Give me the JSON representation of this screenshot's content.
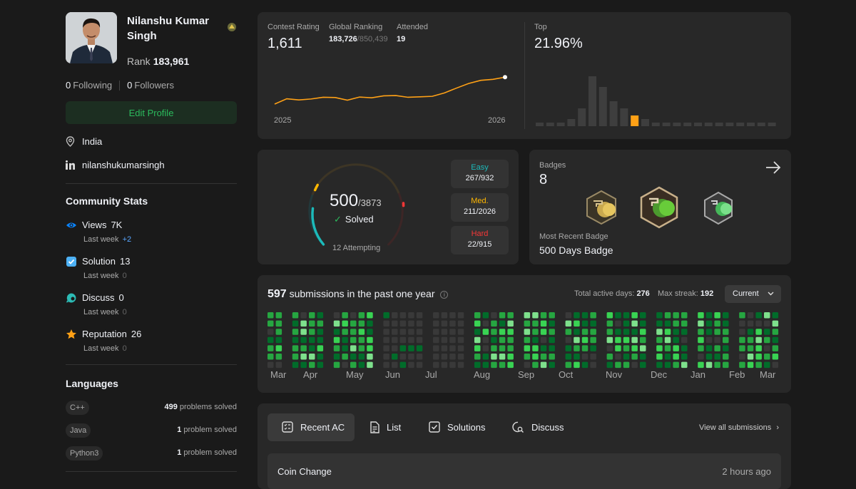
{
  "profile": {
    "name": "Nilanshu Kumar Singh",
    "rank_label": "Rank",
    "rank_value": "183,961",
    "following_count": "0",
    "following_label": "Following",
    "followers_count": "0",
    "followers_label": "Followers",
    "edit_label": "Edit Profile",
    "location": "India",
    "linkedin": "nilanshukumarsingh"
  },
  "community": {
    "title": "Community Stats",
    "items": [
      {
        "label": "Views",
        "value": "7K",
        "sub": "Last week",
        "delta": "+2",
        "icon": "eye-icon"
      },
      {
        "label": "Solution",
        "value": "13",
        "sub": "Last week",
        "delta": "0",
        "icon": "solution-icon"
      },
      {
        "label": "Discuss",
        "value": "0",
        "sub": "Last week",
        "delta": "0",
        "icon": "discuss-icon"
      },
      {
        "label": "Reputation",
        "value": "26",
        "sub": "Last week",
        "delta": "0",
        "icon": "star-icon"
      }
    ]
  },
  "languages": {
    "title": "Languages",
    "items": [
      {
        "name": "C++",
        "count": "499",
        "suffix": "problems solved"
      },
      {
        "name": "Java",
        "count": "1",
        "suffix": "problem solved"
      },
      {
        "name": "Python3",
        "count": "1",
        "suffix": "problem solved"
      }
    ]
  },
  "contest": {
    "rating_label": "Contest Rating",
    "rating": "1,611",
    "ranking_label": "Global Ranking",
    "ranking": "183,726",
    "ranking_total": "/850,439",
    "attended_label": "Attended",
    "attended": "19",
    "x_start": "2025",
    "x_end": "2026",
    "top_label": "Top",
    "top_value": "21.96%"
  },
  "chart_data": [
    {
      "type": "line",
      "x": [
        "2025",
        "",
        "",
        "",
        "",
        "",
        "",
        "",
        "",
        "",
        "",
        "",
        "",
        "",
        "",
        "",
        "",
        "",
        "",
        "2026"
      ],
      "values": [
        1500,
        1522,
        1517,
        1521,
        1528,
        1527,
        1516,
        1529,
        1526,
        1534,
        1535,
        1528,
        1530,
        1532,
        1546,
        1566,
        1585,
        1598,
        1602,
        1611
      ],
      "ylim": [
        1450,
        1650
      ],
      "color": "#ffa116"
    },
    {
      "type": "bar",
      "values": [
        1,
        1,
        1,
        2,
        5,
        14,
        11,
        7,
        5,
        3,
        2,
        1,
        1,
        1,
        1,
        1,
        1,
        1,
        1,
        1,
        1,
        1,
        1
      ],
      "highlight_index": 9,
      "color": "#3e3e3e",
      "highlight_color": "#ffa116"
    }
  ],
  "solved": {
    "solved": "500",
    "total": "/3873",
    "solved_label": "Solved",
    "attempting": "12 Attempting",
    "difficulty": [
      {
        "name": "Easy",
        "value": "267/932",
        "color": "#1cbaba"
      },
      {
        "name": "Med.",
        "value": "211/2026",
        "color": "#ffb700"
      },
      {
        "name": "Hard",
        "value": "22/915",
        "color": "#f63737"
      }
    ]
  },
  "badges": {
    "label": "Badges",
    "count": "8",
    "recent_label": "Most Recent Badge",
    "recent": "500 Days Badge"
  },
  "submissions": {
    "count": "597",
    "text": "submissions in the past one year",
    "active_label": "Total active days:",
    "active_value": "276",
    "streak_label": "Max streak:",
    "streak_value": "192",
    "range": "Current",
    "months": [
      "Mar",
      "Apr",
      "May",
      "Jun",
      "Jul",
      "Aug",
      "Sep",
      "Oct",
      "Nov",
      "Dec",
      "Jan",
      "Feb",
      "Mar"
    ]
  },
  "tabs": {
    "recent": "Recent AC",
    "list": "List",
    "solutions": "Solutions",
    "discuss": "Discuss",
    "view_all": "View all submissions"
  },
  "recent_item": {
    "title": "Coin Change",
    "time": "2 hours ago"
  }
}
